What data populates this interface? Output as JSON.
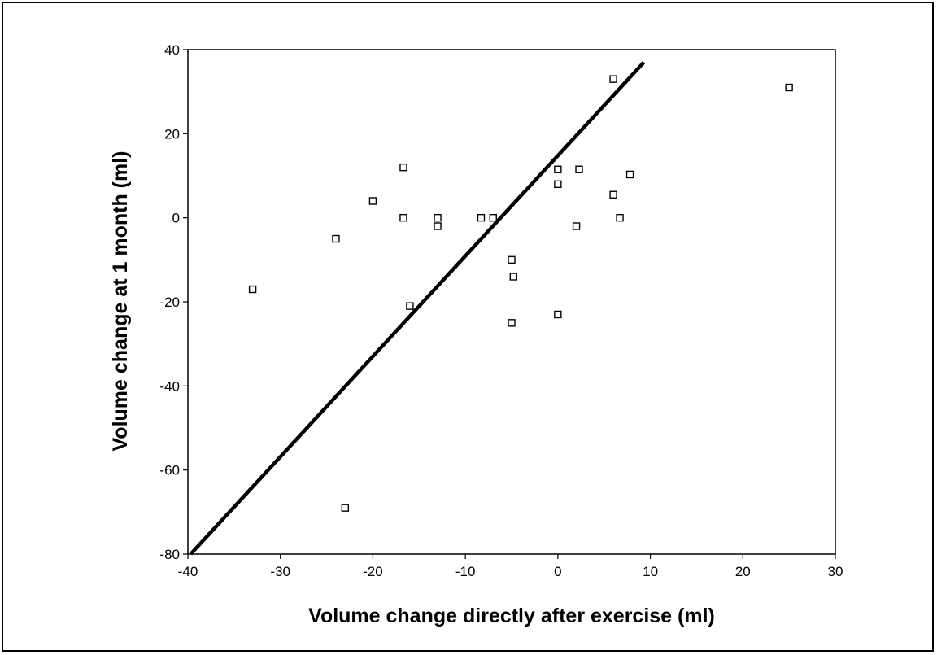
{
  "chart_data": {
    "type": "scatter",
    "title": "",
    "xlabel": "Volume change directly after exercise (ml)",
    "ylabel": "Volume change at 1 month (ml)",
    "xlim": [
      -40,
      30
    ],
    "ylim": [
      -80,
      40
    ],
    "xticks": [
      -40,
      -30,
      -20,
      -10,
      0,
      10,
      20,
      30
    ],
    "yticks": [
      -80,
      -60,
      -40,
      -20,
      0,
      20,
      40
    ],
    "grid": false,
    "legend": "none",
    "marker": "open-square",
    "colors": {
      "marker": "#000000",
      "line": "#000000",
      "axes": "#000000"
    },
    "series": [
      {
        "points": [
          {
            "x": -33,
            "y": -17
          },
          {
            "x": -24,
            "y": -5
          },
          {
            "x": -23,
            "y": -69
          },
          {
            "x": -20,
            "y": 4
          },
          {
            "x": -16.7,
            "y": 12
          },
          {
            "x": -16.7,
            "y": 0
          },
          {
            "x": -16,
            "y": -21
          },
          {
            "x": -13,
            "y": 0
          },
          {
            "x": -13,
            "y": -2
          },
          {
            "x": -8.3,
            "y": 0
          },
          {
            "x": -7,
            "y": 0
          },
          {
            "x": -5,
            "y": -10
          },
          {
            "x": -4.8,
            "y": -14
          },
          {
            "x": -5,
            "y": -25
          },
          {
            "x": 0,
            "y": 11.5
          },
          {
            "x": 0,
            "y": 8
          },
          {
            "x": 0,
            "y": -23
          },
          {
            "x": 2,
            "y": -2
          },
          {
            "x": 2.3,
            "y": 11.5
          },
          {
            "x": 6,
            "y": 33
          },
          {
            "x": 6,
            "y": 5.5
          },
          {
            "x": 6.7,
            "y": 0
          },
          {
            "x": 7.8,
            "y": 10.3
          },
          {
            "x": 25,
            "y": 31
          }
        ]
      }
    ],
    "lines": [
      {
        "x1": -39.7,
        "y1": -80,
        "x2": 9.3,
        "y2": 37
      }
    ]
  }
}
